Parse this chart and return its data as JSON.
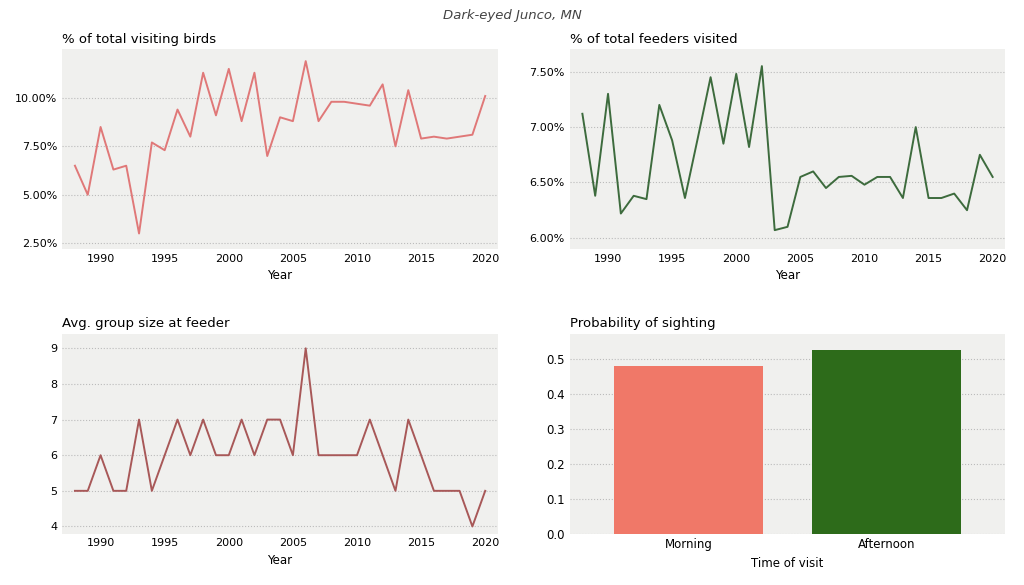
{
  "title": "Dark-eyed Junco, MN",
  "plot1_title": "% of total visiting birds",
  "plot2_title": "% of total feeders visited",
  "plot3_title": "Avg. group size at feeder",
  "plot4_title": "Probability of sighting",
  "xlabel": "Year",
  "plot4_xlabel": "Time of visit",
  "years1": [
    1988,
    1989,
    1990,
    1991,
    1992,
    1993,
    1994,
    1995,
    1996,
    1997,
    1998,
    1999,
    2000,
    2001,
    2002,
    2003,
    2004,
    2005,
    2006,
    2007,
    2008,
    2009,
    2010,
    2011,
    2012,
    2013,
    2014,
    2015,
    2016,
    2017,
    2018,
    2019,
    2020
  ],
  "values1": [
    0.065,
    0.05,
    0.085,
    0.063,
    0.065,
    0.03,
    0.077,
    0.073,
    0.094,
    0.08,
    0.113,
    0.091,
    0.115,
    0.088,
    0.113,
    0.07,
    0.09,
    0.088,
    0.119,
    0.088,
    0.098,
    0.098,
    0.097,
    0.096,
    0.107,
    0.075,
    0.104,
    0.079,
    0.08,
    0.079,
    0.08,
    0.081,
    0.101
  ],
  "color1": "#E07878",
  "years2": [
    1988,
    1989,
    1990,
    1991,
    1992,
    1993,
    1994,
    1995,
    1996,
    1997,
    1998,
    1999,
    2000,
    2001,
    2002,
    2003,
    2004,
    2005,
    2006,
    2007,
    2008,
    2009,
    2010,
    2011,
    2012,
    2013,
    2014,
    2015,
    2016,
    2017,
    2018,
    2019,
    2020
  ],
  "values2": [
    0.0712,
    0.0638,
    0.073,
    0.0622,
    0.0638,
    0.0635,
    0.072,
    0.0688,
    0.0636,
    0.069,
    0.0745,
    0.0685,
    0.0748,
    0.0682,
    0.0755,
    0.0607,
    0.061,
    0.0655,
    0.066,
    0.0645,
    0.0655,
    0.0656,
    0.0648,
    0.0655,
    0.0655,
    0.0636,
    0.07,
    0.0636,
    0.0636,
    0.064,
    0.0625,
    0.0675,
    0.0655
  ],
  "color2": "#3D6B3D",
  "years3": [
    1988,
    1989,
    1990,
    1991,
    1992,
    1993,
    1994,
    1995,
    1996,
    1997,
    1998,
    1999,
    2000,
    2001,
    2002,
    2003,
    2004,
    2005,
    2006,
    2007,
    2008,
    2009,
    2010,
    2011,
    2012,
    2013,
    2014,
    2015,
    2016,
    2017,
    2018,
    2019,
    2020
  ],
  "values3": [
    5,
    5,
    6,
    5,
    5,
    7,
    5,
    6,
    7,
    6,
    7,
    6,
    6,
    7,
    6,
    7,
    7,
    6,
    9,
    6,
    6,
    6,
    6,
    7,
    6,
    5,
    7,
    6,
    5,
    5,
    5,
    4,
    5
  ],
  "color3": "#A85858",
  "bar_categories": [
    "Morning",
    "Afternoon"
  ],
  "bar_values": [
    0.478,
    0.525
  ],
  "bar_colors": [
    "#F07868",
    "#2D6B1A"
  ],
  "yticks1": [
    0.025,
    0.05,
    0.075,
    0.1
  ],
  "ylim1": [
    0.022,
    0.125
  ],
  "yticks2": [
    0.06,
    0.065,
    0.07,
    0.075
  ],
  "ylim2": [
    0.059,
    0.077
  ],
  "yticks3": [
    4,
    5,
    6,
    7,
    8,
    9
  ],
  "ylim3": [
    3.8,
    9.4
  ],
  "yticks4": [
    0.0,
    0.1,
    0.2,
    0.3,
    0.4,
    0.5
  ],
  "ylim4": [
    0.0,
    0.57
  ],
  "bg_color": "#FFFFFF",
  "plot_bg_color": "#F0F0EE",
  "grid_color": "#BBBBBB"
}
